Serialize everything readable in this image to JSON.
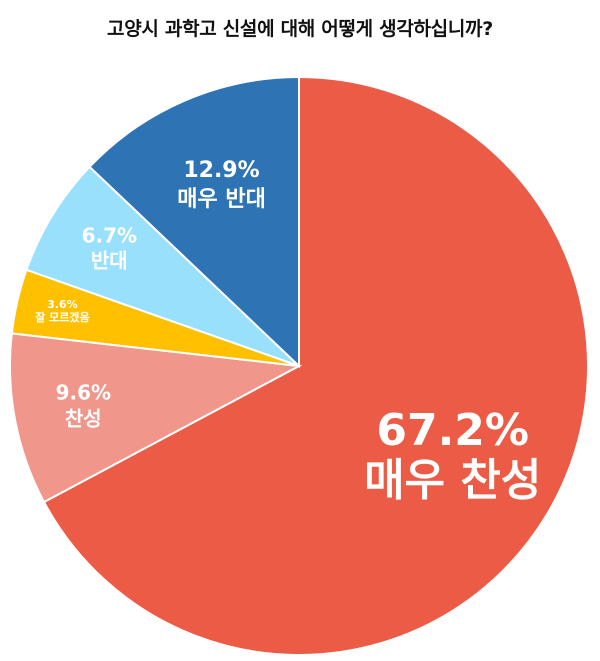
{
  "chart_data": {
    "type": "pie",
    "title": "고양시 과학고 신설에 대해 어떻게 생각하십니까?",
    "slices": [
      {
        "label": "매우 찬성",
        "value": 67.2,
        "value_text": "67.2%",
        "color": "#EB5B45"
      },
      {
        "label": "찬성",
        "value": 9.6,
        "value_text": "9.6%",
        "color": "#F0968A"
      },
      {
        "label": "잘 모르겠음",
        "value": 3.6,
        "value_text": "3.6%",
        "color": "#FFC000"
      },
      {
        "label": "반대",
        "value": 6.7,
        "value_text": "6.7%",
        "color": "#99E0FC"
      },
      {
        "label": "매우 반대",
        "value": 12.9,
        "value_text": "12.9%",
        "color": "#2E74B5"
      }
    ]
  }
}
